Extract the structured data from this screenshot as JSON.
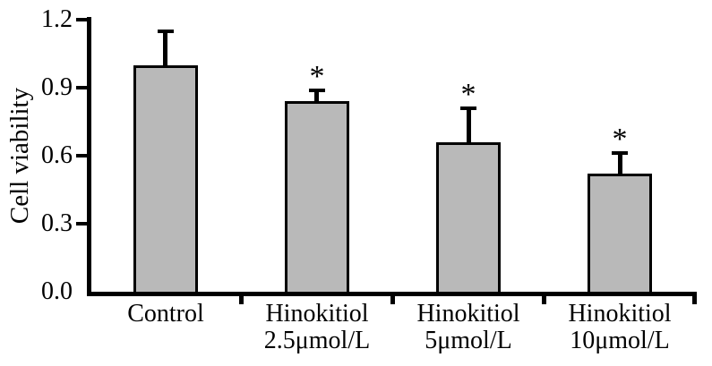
{
  "figure": {
    "background": "#ffffff"
  },
  "chart_data": {
    "type": "bar",
    "title": "",
    "xlabel": "",
    "ylabel": "Cell viability",
    "categories": [
      "Control",
      "Hinokitiol\n2.5μmol/L",
      "Hinokitiol\n5μmol/L",
      "Hinokitiol\n10μmol/L"
    ],
    "values": [
      1.0,
      0.84,
      0.66,
      0.52
    ],
    "errors": [
      0.15,
      0.05,
      0.15,
      0.09
    ],
    "error_direction": "upper",
    "significance": [
      "",
      "*",
      "*",
      "*"
    ],
    "ylim": [
      0,
      1.2
    ],
    "yticks": [
      0.0,
      0.3,
      0.6,
      0.9,
      1.2
    ],
    "grid": false,
    "legend": null,
    "bar_fill": "#b9b9b9",
    "bar_border": "#000000",
    "axis_color": "#000000",
    "text_color": "#000000"
  }
}
